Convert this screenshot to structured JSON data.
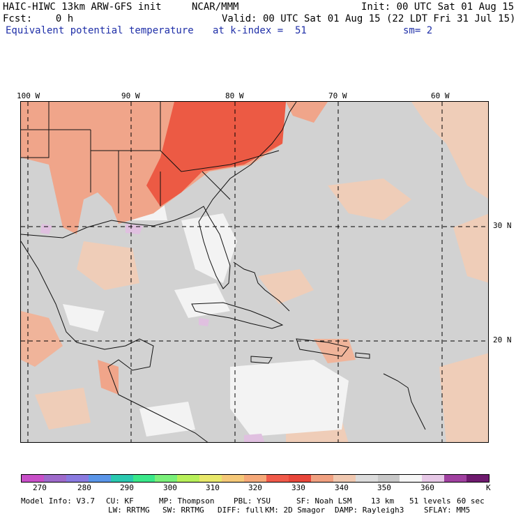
{
  "header": {
    "model": "HAIC-HIWC 13km ARW-GFS init",
    "org": "NCAR/MMM",
    "init": "Init: 00 UTC Sat 01 Aug 15",
    "fcst": "Fcst:    0 h",
    "valid": "Valid: 00 UTC Sat 01 Aug 15 (22 LDT Fri 31 Jul 15)",
    "field": "Equivalent potential temperature",
    "level": "at k-index =  51",
    "smooth": "sm= 2"
  },
  "map": {
    "lon_labels": [
      "100 W",
      "90 W",
      "80 W",
      "70 W",
      "60 W"
    ],
    "lat_labels": [
      "30 N",
      "20 N"
    ]
  },
  "colorbar": {
    "colors": [
      "#c84fc8",
      "#9e6acb",
      "#8a7ae0",
      "#5a95e8",
      "#2ac9b0",
      "#3ae88a",
      "#7af07a",
      "#b8f05a",
      "#e8e86a",
      "#f5c878",
      "#f5a878",
      "#f05a4a",
      "#e8463a",
      "#f0a080",
      "#f0c8b0",
      "#dcdcdc",
      "#c8c8c8",
      "#f5f5f5",
      "#e6c8e6",
      "#a040a0",
      "#6e1a6e"
    ],
    "ticks": [
      "270",
      "280",
      "290",
      "300",
      "310",
      "320",
      "330",
      "340",
      "350",
      "360"
    ],
    "unit": "K"
  },
  "model_info": {
    "line1": [
      "Model Info: V3.7",
      "CU: KF",
      "MP: Thompson",
      "PBL: YSU",
      "SF: Noah LSM",
      "13 km",
      "51 levels",
      "60 sec"
    ],
    "line2": [
      "LW: RRTMG",
      "SW: RRTMG",
      "DIFF: full",
      "KM: 2D Smagor",
      "DAMP: Rayleigh3",
      "SFLAY: MM5"
    ]
  }
}
